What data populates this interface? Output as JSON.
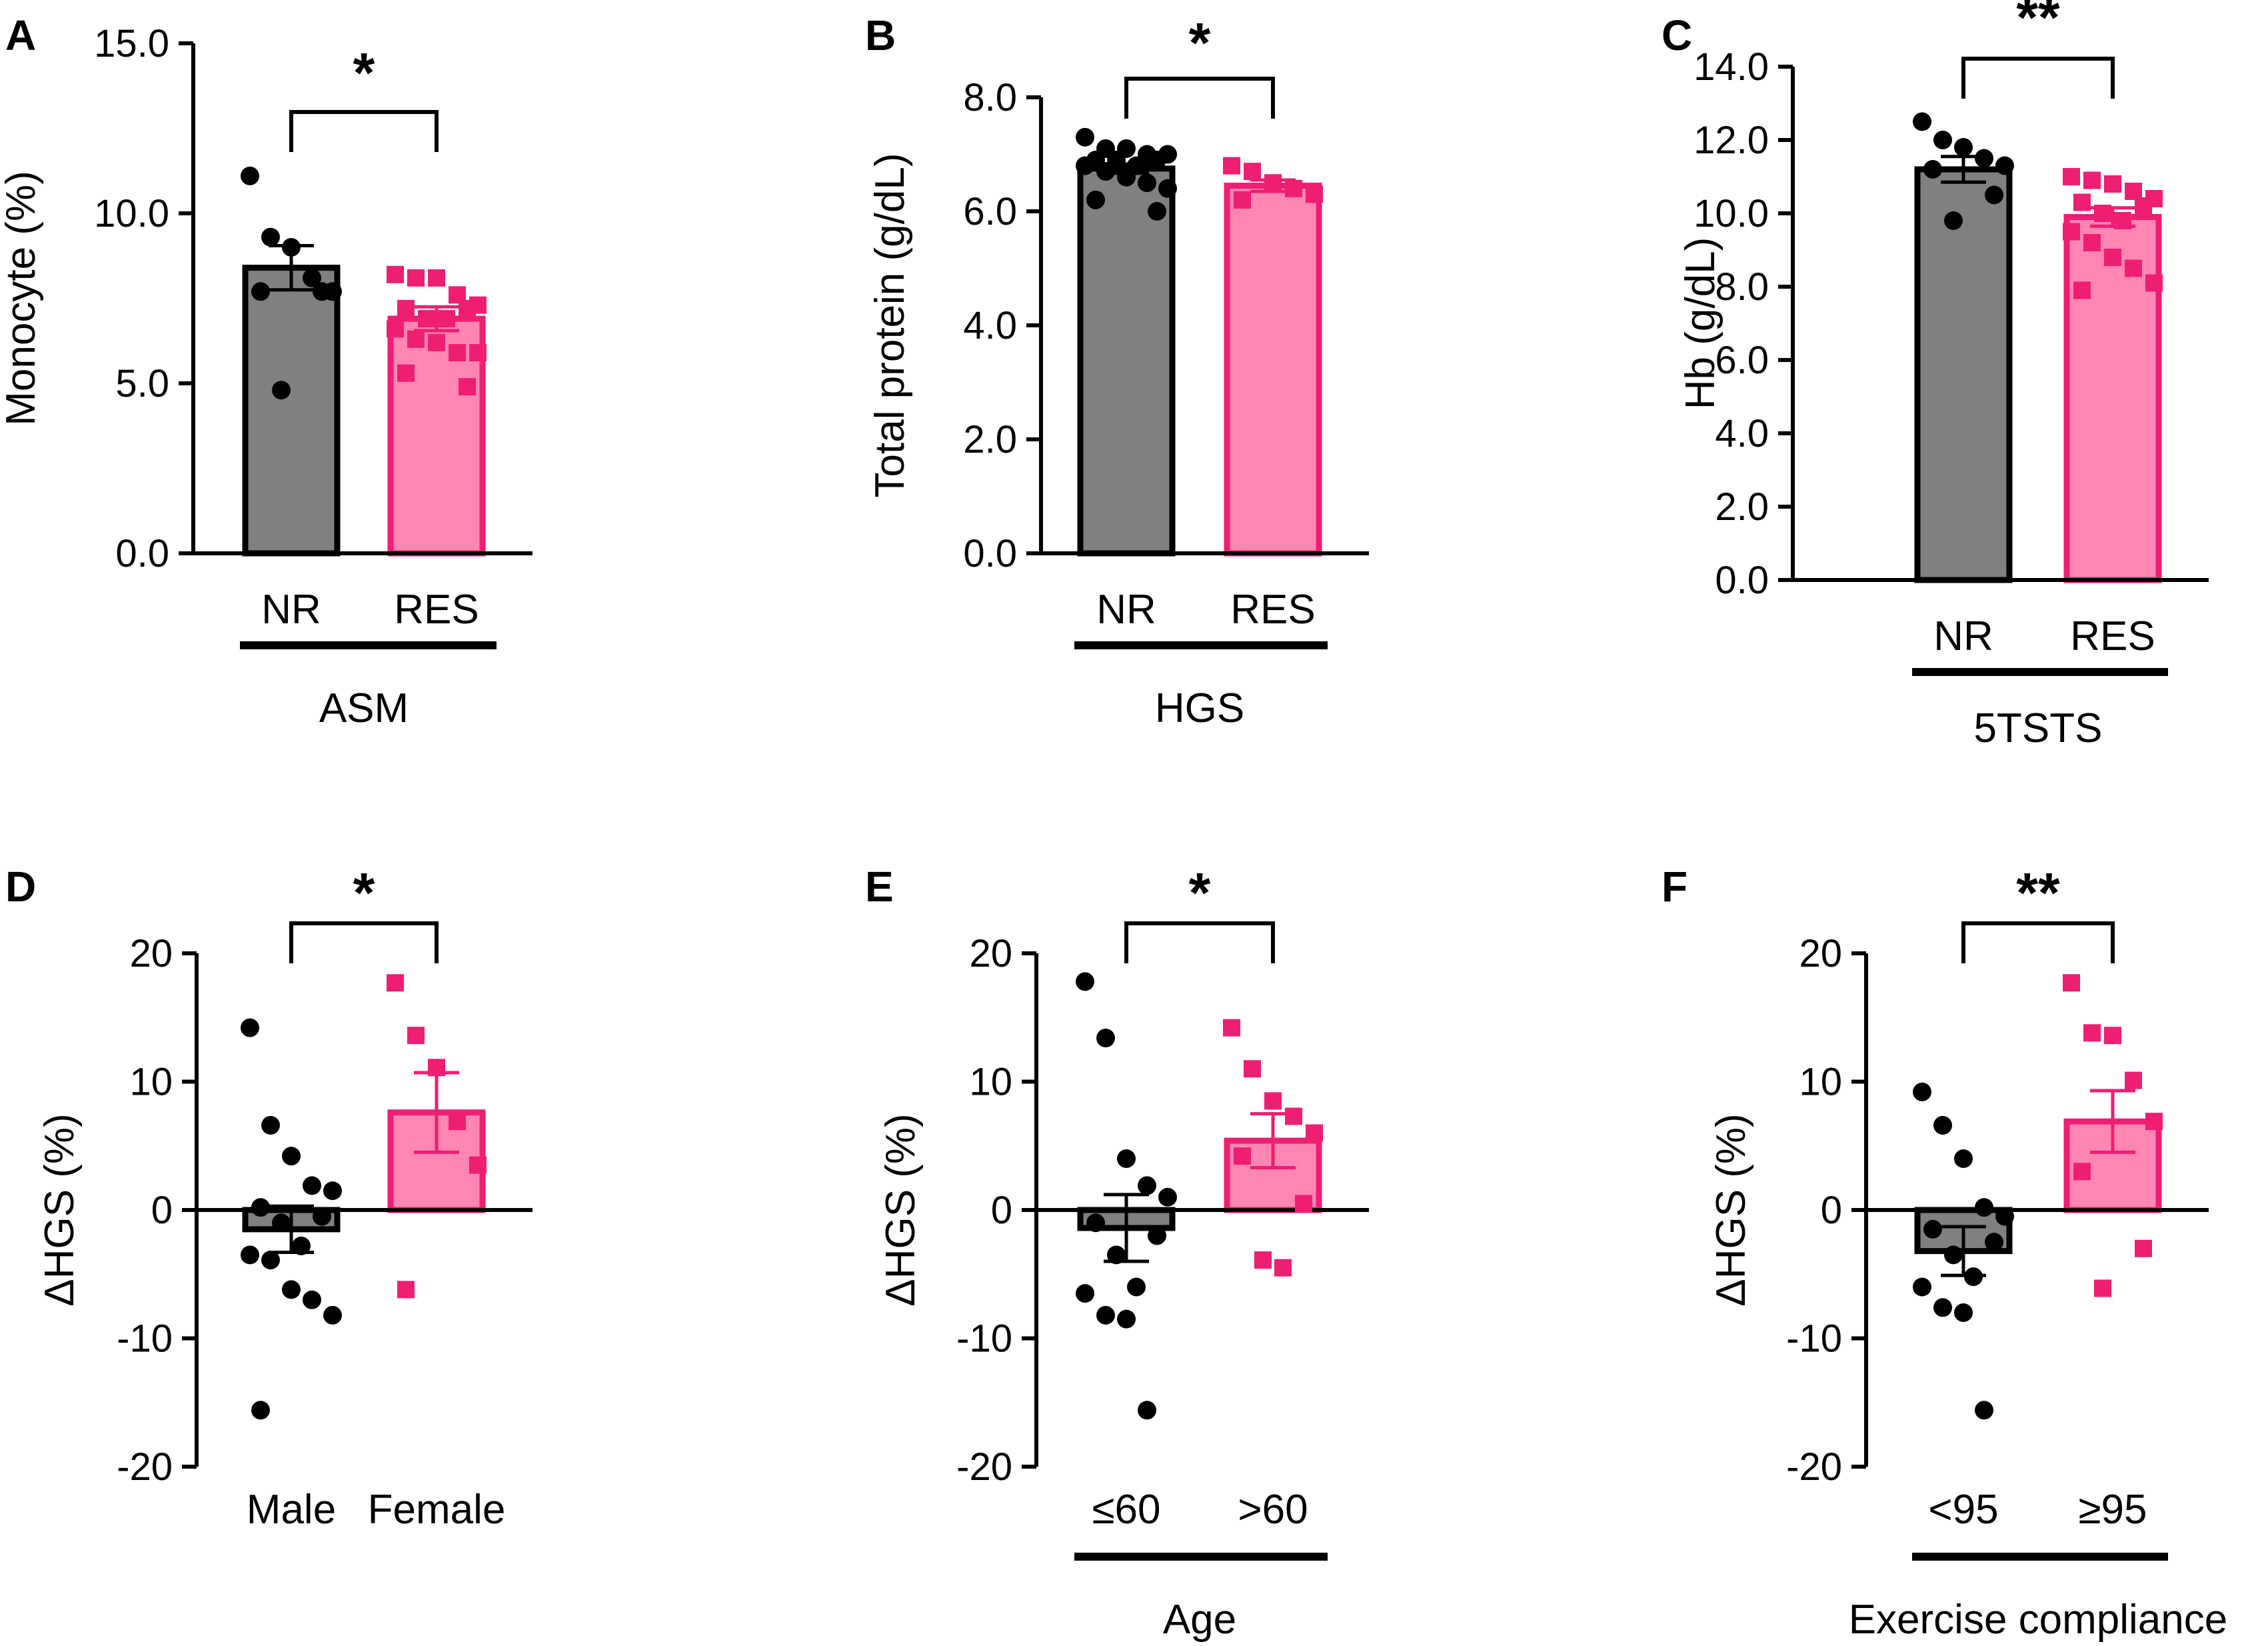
{
  "colors": {
    "nr_fill": "#808080",
    "res_fill": "#ff85b3",
    "res_point": "#ee1f73",
    "nr_point": "#000000",
    "axis": "#000000"
  },
  "chart_data": [
    {
      "panel": "A",
      "type": "bar",
      "ylabel": "Monocyte (%)",
      "ylim": [
        0,
        15
      ],
      "yticks": [
        0,
        5,
        10,
        15
      ],
      "ytick_labels": [
        "0.0",
        "5.0",
        "10.0",
        "15.0"
      ],
      "categories": [
        "NR",
        "RES"
      ],
      "group_label": "ASM",
      "means": [
        8.4,
        6.9
      ],
      "sem": [
        0.65,
        0.35
      ],
      "significance": "*",
      "points": [
        [
          11.1,
          9.3,
          9.0,
          8.1,
          7.7,
          7.7,
          7.7,
          4.8
        ],
        [
          8.2,
          8.1,
          8.1,
          7.6,
          7.3,
          7.2,
          7.2,
          6.9,
          6.9,
          6.6,
          6.3,
          6.2,
          5.9,
          5.9,
          5.3,
          4.9
        ]
      ]
    },
    {
      "panel": "B",
      "type": "bar",
      "ylabel": "Total protein (g/dL)",
      "ylim": [
        0,
        8
      ],
      "yticks": [
        0,
        2,
        4,
        6,
        8
      ],
      "ytick_labels": [
        "0.0",
        "2.0",
        "4.0",
        "6.0",
        "8.0"
      ],
      "categories": [
        "NR",
        "RES"
      ],
      "group_label": "HGS",
      "means": [
        6.75,
        6.45
      ],
      "sem": [
        0.08,
        0.1
      ],
      "significance": "*",
      "points": [
        [
          7.3,
          7.1,
          7.1,
          7.0,
          7.0,
          6.9,
          6.9,
          6.9,
          6.8,
          6.8,
          6.7,
          6.6,
          6.5,
          6.4,
          6.2,
          6.0
        ],
        [
          6.8,
          6.7,
          6.5,
          6.4,
          6.3,
          6.2
        ]
      ]
    },
    {
      "panel": "C",
      "type": "bar",
      "ylabel": "Hb (g/dL)",
      "ylim": [
        0,
        14
      ],
      "yticks": [
        0,
        2,
        4,
        6,
        8,
        10,
        12,
        14
      ],
      "ytick_labels": [
        "0.0",
        "2.0",
        "4.0",
        "6.0",
        "8.0",
        "10.0",
        "12.0",
        "14.0"
      ],
      "categories": [
        "NR",
        "RES"
      ],
      "group_label": "5TSTS",
      "means": [
        11.2,
        9.9
      ],
      "sem": [
        0.35,
        0.25
      ],
      "significance": "**",
      "points": [
        [
          12.5,
          12.0,
          11.8,
          11.5,
          11.3,
          11.2,
          10.5,
          9.8
        ],
        [
          11.0,
          10.9,
          10.8,
          10.6,
          10.4,
          10.3,
          10.2,
          10.0,
          9.8,
          9.5,
          9.2,
          8.8,
          8.5,
          8.1,
          7.9
        ]
      ]
    },
    {
      "panel": "D",
      "type": "bar",
      "ylabel": "ΔHGS (%)",
      "ylim": [
        -20,
        20
      ],
      "yticks": [
        -20,
        -10,
        0,
        10,
        20
      ],
      "ytick_labels": [
        "-20",
        "-10",
        "0",
        "10",
        "20"
      ],
      "categories": [
        "Male",
        "Female"
      ],
      "group_label": "",
      "means": [
        -1.5,
        7.6
      ],
      "sem": [
        1.8,
        3.1
      ],
      "significance": "*",
      "points": [
        [
          14.2,
          6.6,
          4.2,
          1.9,
          1.5,
          0.2,
          -0.5,
          -1.0,
          -2.8,
          -3.5,
          -3.9,
          -6.2,
          -7.0,
          -8.2,
          -15.6
        ],
        [
          17.7,
          13.6,
          11.1,
          6.9,
          3.5,
          -6.2
        ]
      ]
    },
    {
      "panel": "E",
      "type": "bar",
      "ylabel": "ΔHGS (%)",
      "ylim": [
        -20,
        20
      ],
      "yticks": [
        -20,
        -10,
        0,
        10,
        20
      ],
      "ytick_labels": [
        "-20",
        "-10",
        "0",
        "10",
        "20"
      ],
      "categories": [
        "≤60",
        ">60"
      ],
      "group_label": "Age",
      "means": [
        -1.4,
        5.4
      ],
      "sem": [
        2.6,
        2.1
      ],
      "significance": "*",
      "points": [
        [
          17.8,
          13.4,
          4.0,
          1.9,
          1.0,
          -1.0,
          -2.0,
          -3.5,
          -6.0,
          -6.5,
          -8.2,
          -8.5,
          -15.6
        ],
        [
          14.2,
          11.0,
          8.5,
          7.3,
          6.0,
          4.2,
          0.5,
          -3.9,
          -4.5
        ]
      ]
    },
    {
      "panel": "F",
      "type": "bar",
      "ylabel": "ΔHGS (%)",
      "ylim": [
        -20,
        20
      ],
      "yticks": [
        -20,
        -10,
        0,
        10,
        20
      ],
      "ytick_labels": [
        "-20",
        "-10",
        "0",
        "10",
        "20"
      ],
      "categories": [
        "<95",
        "≥95"
      ],
      "group_label": "Exercise compliance",
      "means": [
        -3.2,
        6.9
      ],
      "sem": [
        1.9,
        2.4
      ],
      "significance": "**",
      "points": [
        [
          9.2,
          6.6,
          4.0,
          0.2,
          -0.5,
          -1.5,
          -2.5,
          -3.5,
          -5.2,
          -6.0,
          -7.6,
          -8.0,
          -15.6
        ],
        [
          17.7,
          13.8,
          13.6,
          10.1,
          6.9,
          3.0,
          -3.0,
          -6.1
        ]
      ]
    }
  ]
}
